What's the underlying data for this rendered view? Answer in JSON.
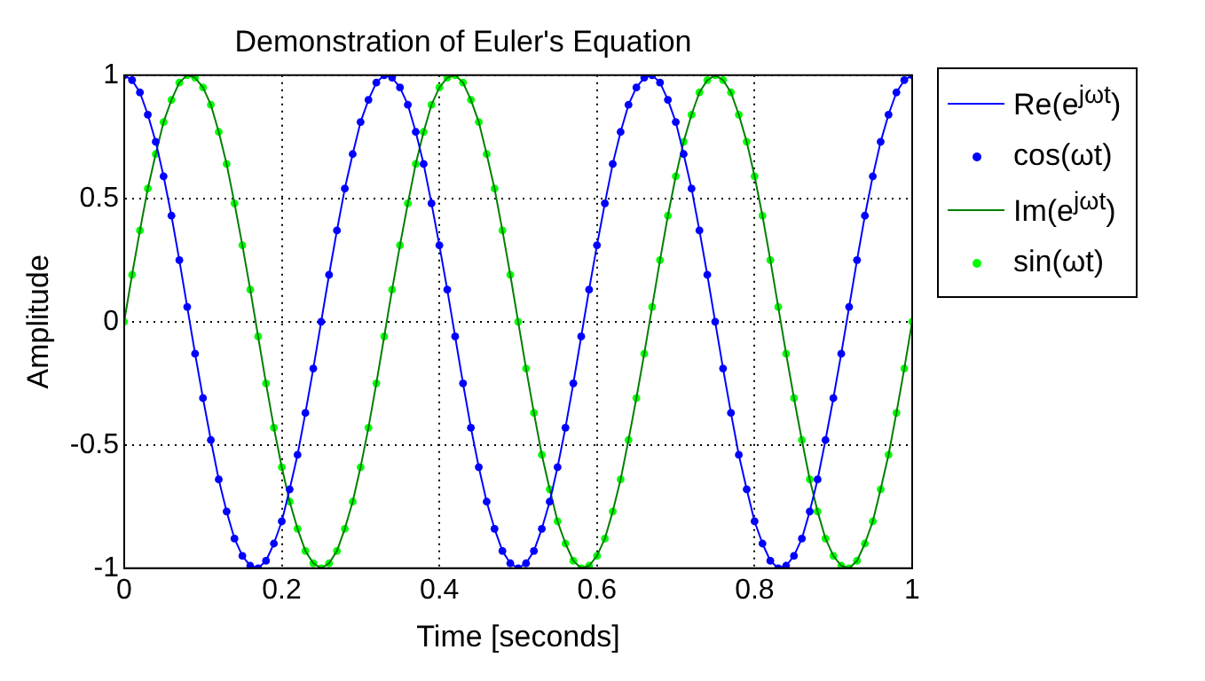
{
  "chart_data": {
    "type": "line",
    "title": "Demonstration of Euler's Equation",
    "xlabel": "Time [seconds]",
    "ylabel": "Amplitude",
    "x": [
      0,
      0.01,
      0.02,
      0.03,
      0.04,
      0.05,
      0.06,
      0.07,
      0.08,
      0.09,
      0.1,
      0.11,
      0.12,
      0.13,
      0.14,
      0.15,
      0.16,
      0.17,
      0.18,
      0.19,
      0.2,
      0.21,
      0.22,
      0.23,
      0.24,
      0.25,
      0.26,
      0.27,
      0.28,
      0.29,
      0.3,
      0.31,
      0.32,
      0.33,
      0.34,
      0.35,
      0.36,
      0.37,
      0.38,
      0.39,
      0.4,
      0.41,
      0.42,
      0.43,
      0.44,
      0.45,
      0.46,
      0.47,
      0.48,
      0.49,
      0.5,
      0.51,
      0.52,
      0.53,
      0.54,
      0.55,
      0.56,
      0.57,
      0.58,
      0.59,
      0.6,
      0.61,
      0.62,
      0.63,
      0.64,
      0.65,
      0.66,
      0.67,
      0.68,
      0.69,
      0.7,
      0.71,
      0.72,
      0.73,
      0.74,
      0.75,
      0.76,
      0.77,
      0.78,
      0.79,
      0.8,
      0.81,
      0.82,
      0.83,
      0.84,
      0.85,
      0.86,
      0.87,
      0.88,
      0.89,
      0.9,
      0.91,
      0.92,
      0.93,
      0.94,
      0.95,
      0.96,
      0.97,
      0.98,
      0.99,
      1
    ],
    "series": [
      {
        "name": "Re(e$^{jωt}$)",
        "marker": "none",
        "color": "#0000ff",
        "values": [
          1,
          0.98,
          0.93,
          0.84,
          0.73,
          0.59,
          0.43,
          0.25,
          0.06,
          -0.13,
          -0.31,
          -0.48,
          -0.64,
          -0.77,
          -0.88,
          -0.95,
          -0.99,
          -1,
          -0.97,
          -0.9,
          -0.81,
          -0.68,
          -0.54,
          -0.37,
          -0.19,
          0,
          0.19,
          0.37,
          0.54,
          0.68,
          0.81,
          0.9,
          0.97,
          1,
          0.99,
          0.95,
          0.88,
          0.77,
          0.64,
          0.48,
          0.31,
          0.13,
          -0.06,
          -0.25,
          -0.43,
          -0.59,
          -0.73,
          -0.84,
          -0.93,
          -0.98,
          -1,
          -0.98,
          -0.93,
          -0.84,
          -0.73,
          -0.59,
          -0.43,
          -0.25,
          -0.06,
          0.13,
          0.31,
          0.48,
          0.64,
          0.77,
          0.88,
          0.95,
          0.99,
          1,
          0.97,
          0.9,
          0.81,
          0.68,
          0.54,
          0.37,
          0.19,
          0,
          -0.19,
          -0.37,
          -0.54,
          -0.68,
          -0.81,
          -0.9,
          -0.97,
          -1,
          -0.99,
          -0.95,
          -0.88,
          -0.77,
          -0.64,
          -0.48,
          -0.31,
          -0.13,
          0.06,
          0.25,
          0.43,
          0.59,
          0.73,
          0.84,
          0.93,
          0.98,
          1
        ]
      },
      {
        "name": "cos(ωt)",
        "type": "scatter",
        "marker": "circle",
        "color": "#0000ff",
        "values": [
          1,
          0.98,
          0.93,
          0.84,
          0.73,
          0.59,
          0.43,
          0.25,
          0.06,
          -0.13,
          -0.31,
          -0.48,
          -0.64,
          -0.77,
          -0.88,
          -0.95,
          -0.99,
          -1,
          -0.97,
          -0.9,
          -0.81,
          -0.68,
          -0.54,
          -0.37,
          -0.19,
          0,
          0.19,
          0.37,
          0.54,
          0.68,
          0.81,
          0.9,
          0.97,
          1,
          0.99,
          0.95,
          0.88,
          0.77,
          0.64,
          0.48,
          0.31,
          0.13,
          -0.06,
          -0.25,
          -0.43,
          -0.59,
          -0.73,
          -0.84,
          -0.93,
          -0.98,
          -1,
          -0.98,
          -0.93,
          -0.84,
          -0.73,
          -0.59,
          -0.43,
          -0.25,
          -0.06,
          0.13,
          0.31,
          0.48,
          0.64,
          0.77,
          0.88,
          0.95,
          0.99,
          1,
          0.97,
          0.9,
          0.81,
          0.68,
          0.54,
          0.37,
          0.19,
          0,
          -0.19,
          -0.37,
          -0.54,
          -0.68,
          -0.81,
          -0.9,
          -0.97,
          -1,
          -0.99,
          -0.95,
          -0.88,
          -0.77,
          -0.64,
          -0.48,
          -0.31,
          -0.13,
          0.06,
          0.25,
          0.43,
          0.59,
          0.73,
          0.84,
          0.93,
          0.98,
          1
        ]
      },
      {
        "name": "Im(e$^{jωt}$)",
        "marker": "none",
        "color": "#008000",
        "values": [
          0,
          0.19,
          0.37,
          0.54,
          0.68,
          0.81,
          0.9,
          0.97,
          1,
          0.99,
          0.95,
          0.88,
          0.77,
          0.64,
          0.48,
          0.31,
          0.13,
          -0.06,
          -0.25,
          -0.43,
          -0.59,
          -0.73,
          -0.84,
          -0.93,
          -0.98,
          -1,
          -0.98,
          -0.93,
          -0.84,
          -0.73,
          -0.59,
          -0.43,
          -0.25,
          -0.06,
          0.13,
          0.31,
          0.48,
          0.64,
          0.77,
          0.88,
          0.95,
          0.99,
          1,
          0.97,
          0.9,
          0.81,
          0.68,
          0.54,
          0.37,
          0.19,
          0,
          -0.19,
          -0.37,
          -0.54,
          -0.68,
          -0.81,
          -0.9,
          -0.97,
          -1,
          -0.99,
          -0.95,
          -0.88,
          -0.77,
          -0.64,
          -0.48,
          -0.31,
          -0.13,
          0.06,
          0.25,
          0.43,
          0.59,
          0.73,
          0.84,
          0.93,
          0.98,
          1,
          0.98,
          0.93,
          0.84,
          0.73,
          0.59,
          0.43,
          0.25,
          0.06,
          -0.13,
          -0.31,
          -0.48,
          -0.64,
          -0.77,
          -0.88,
          -0.95,
          -0.99,
          -1,
          -0.97,
          -0.9,
          -0.81,
          -0.68,
          -0.54,
          -0.37,
          -0.19,
          0
        ]
      },
      {
        "name": "sin(ωt)",
        "type": "scatter",
        "marker": "circle",
        "color": "#00ff00",
        "values": [
          0,
          0.19,
          0.37,
          0.54,
          0.68,
          0.81,
          0.9,
          0.97,
          1,
          0.99,
          0.95,
          0.88,
          0.77,
          0.64,
          0.48,
          0.31,
          0.13,
          -0.06,
          -0.25,
          -0.43,
          -0.59,
          -0.73,
          -0.84,
          -0.93,
          -0.98,
          -1,
          -0.98,
          -0.93,
          -0.84,
          -0.73,
          -0.59,
          -0.43,
          -0.25,
          -0.06,
          0.13,
          0.31,
          0.48,
          0.64,
          0.77,
          0.88,
          0.95,
          0.99,
          1,
          0.97,
          0.9,
          0.81,
          0.68,
          0.54,
          0.37,
          0.19,
          0,
          -0.19,
          -0.37,
          -0.54,
          -0.68,
          -0.81,
          -0.9,
          -0.97,
          -1,
          -0.99,
          -0.95,
          -0.88,
          -0.77,
          -0.64,
          -0.48,
          -0.31,
          -0.13,
          0.06,
          0.25,
          0.43,
          0.59,
          0.73,
          0.84,
          0.93,
          0.98,
          1,
          0.98,
          0.93,
          0.84,
          0.73,
          0.59,
          0.43,
          0.25,
          0.06,
          -0.13,
          -0.31,
          -0.48,
          -0.64,
          -0.77,
          -0.88,
          -0.95,
          -0.99,
          -1,
          -0.97,
          -0.9,
          -0.81,
          -0.68,
          -0.54,
          -0.37,
          -0.19,
          0
        ]
      }
    ],
    "xlim": [
      0,
      1
    ],
    "xticks": [
      0,
      0.2,
      0.4,
      0.6,
      0.8,
      1
    ],
    "ylim": [
      -1,
      1
    ],
    "yticks": [
      -1,
      -0.5,
      0,
      0.5,
      1
    ],
    "grid": true,
    "legend": "right",
    "line_style": "solid"
  }
}
